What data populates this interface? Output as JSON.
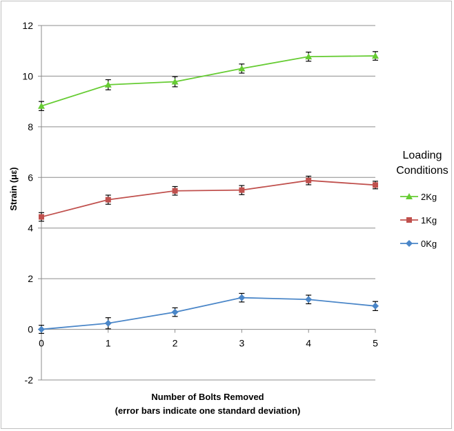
{
  "chart_data": {
    "type": "line",
    "xlabel": "Number of Bolts Removed",
    "xlabel_note": "(error bars indicate one standard deviation)",
    "ylabel": "Strain (με)",
    "x": [
      0,
      1,
      2,
      3,
      4,
      5
    ],
    "xlim": [
      0,
      5
    ],
    "ylim": [
      -2,
      12
    ],
    "xticks": [
      "0",
      "1",
      "2",
      "3",
      "4",
      "5"
    ],
    "yticks": [
      "-2",
      "0",
      "2",
      "4",
      "6",
      "8",
      "10",
      "12"
    ],
    "ytick_values": [
      -2,
      0,
      2,
      4,
      6,
      8,
      10,
      12
    ],
    "grid": "horizontal",
    "legend_title": [
      "Loading",
      "Conditions"
    ],
    "legend_position": "right",
    "series": [
      {
        "name": "2Kg",
        "color": "#66cc33",
        "marker": "triangle",
        "values": [
          8.82,
          9.66,
          9.78,
          10.3,
          10.77,
          10.8
        ],
        "errors": [
          0.18,
          0.2,
          0.2,
          0.18,
          0.18,
          0.17
        ]
      },
      {
        "name": "1Kg",
        "color": "#c0504d",
        "marker": "square",
        "values": [
          4.44,
          5.12,
          5.47,
          5.5,
          5.88,
          5.7
        ],
        "errors": [
          0.17,
          0.18,
          0.17,
          0.18,
          0.17,
          0.15
        ]
      },
      {
        "name": "0Kg",
        "color": "#4a86c8",
        "marker": "diamond",
        "values": [
          0.0,
          0.24,
          0.68,
          1.25,
          1.18,
          0.92
        ],
        "errors": [
          0.16,
          0.22,
          0.17,
          0.17,
          0.17,
          0.18
        ]
      }
    ]
  }
}
